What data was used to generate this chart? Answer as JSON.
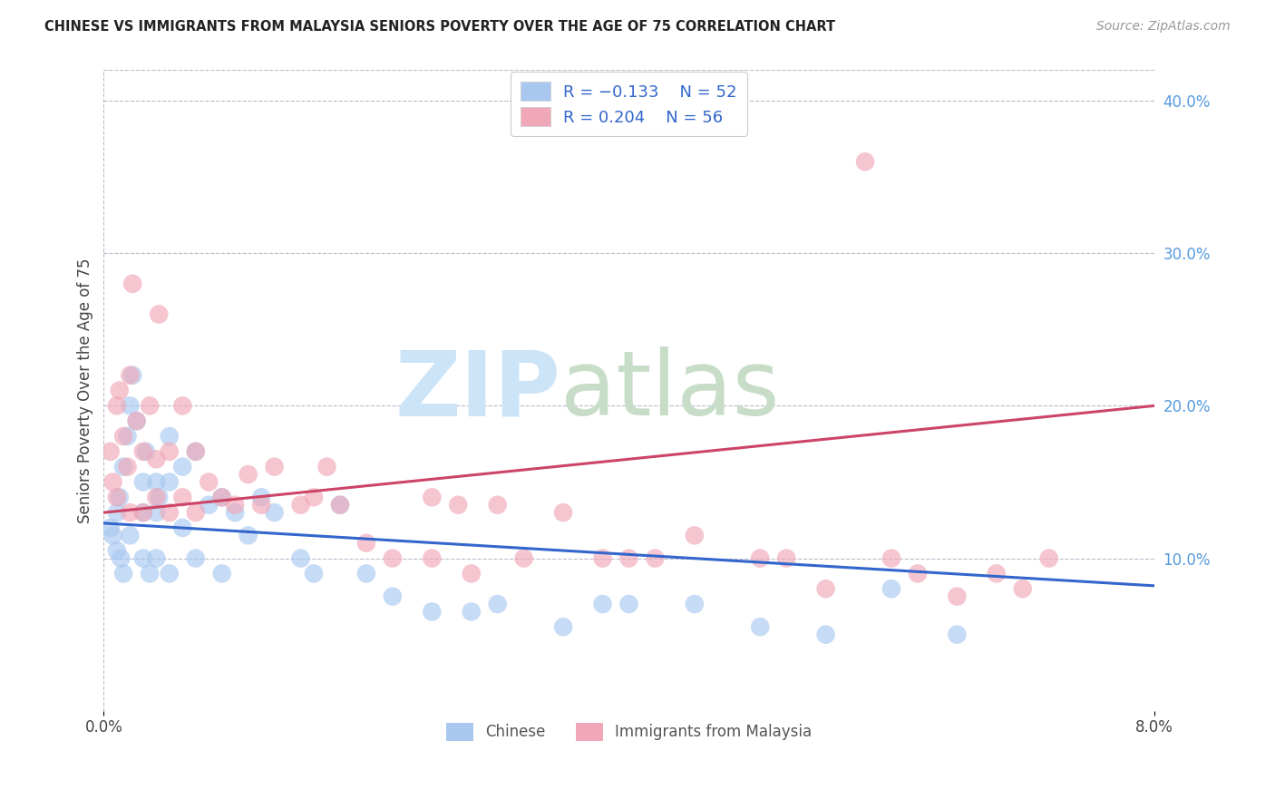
{
  "title": "CHINESE VS IMMIGRANTS FROM MALAYSIA SENIORS POVERTY OVER THE AGE OF 75 CORRELATION CHART",
  "source": "Source: ZipAtlas.com",
  "ylabel": "Seniors Poverty Over the Age of 75",
  "xlim": [
    0.0,
    0.08
  ],
  "ylim": [
    0.0,
    0.42
  ],
  "yticks_right": [
    0.1,
    0.2,
    0.3,
    0.4
  ],
  "ytick_right_labels": [
    "10.0%",
    "20.0%",
    "30.0%",
    "40.0%"
  ],
  "chinese_R": -0.133,
  "chinese_N": 52,
  "malaysia_R": 0.204,
  "malaysia_N": 56,
  "chinese_color": "#a8c8f0",
  "malaysia_color": "#f0a8b8",
  "chinese_line_color": "#3366cc",
  "malaysia_line_color": "#cc4466",
  "legend_R_color": "#3366cc",
  "chinese_line_y0": 0.123,
  "chinese_line_y1": 0.082,
  "malaysia_line_y0": 0.13,
  "malaysia_line_y1": 0.2,
  "chinese_x": [
    0.0005,
    0.0007,
    0.001,
    0.001,
    0.0012,
    0.0013,
    0.0015,
    0.0015,
    0.0018,
    0.002,
    0.002,
    0.0022,
    0.0025,
    0.003,
    0.003,
    0.003,
    0.0032,
    0.0035,
    0.004,
    0.004,
    0.004,
    0.0042,
    0.005,
    0.005,
    0.005,
    0.006,
    0.006,
    0.007,
    0.007,
    0.008,
    0.009,
    0.009,
    0.01,
    0.011,
    0.012,
    0.013,
    0.015,
    0.016,
    0.018,
    0.02,
    0.022,
    0.025,
    0.028,
    0.03,
    0.035,
    0.038,
    0.04,
    0.045,
    0.05,
    0.055,
    0.06,
    0.065
  ],
  "chinese_y": [
    0.12,
    0.115,
    0.13,
    0.105,
    0.14,
    0.1,
    0.16,
    0.09,
    0.18,
    0.2,
    0.115,
    0.22,
    0.19,
    0.15,
    0.13,
    0.1,
    0.17,
    0.09,
    0.15,
    0.13,
    0.1,
    0.14,
    0.18,
    0.15,
    0.09,
    0.16,
    0.12,
    0.17,
    0.1,
    0.135,
    0.14,
    0.09,
    0.13,
    0.115,
    0.14,
    0.13,
    0.1,
    0.09,
    0.135,
    0.09,
    0.075,
    0.065,
    0.065,
    0.07,
    0.055,
    0.07,
    0.07,
    0.07,
    0.055,
    0.05,
    0.08,
    0.05
  ],
  "malaysia_x": [
    0.0005,
    0.0007,
    0.001,
    0.001,
    0.0012,
    0.0015,
    0.0018,
    0.002,
    0.002,
    0.0022,
    0.0025,
    0.003,
    0.003,
    0.0035,
    0.004,
    0.004,
    0.0042,
    0.005,
    0.005,
    0.006,
    0.006,
    0.007,
    0.007,
    0.008,
    0.009,
    0.01,
    0.011,
    0.012,
    0.013,
    0.015,
    0.016,
    0.017,
    0.018,
    0.02,
    0.022,
    0.025,
    0.025,
    0.027,
    0.028,
    0.03,
    0.032,
    0.035,
    0.038,
    0.04,
    0.042,
    0.045,
    0.05,
    0.052,
    0.055,
    0.058,
    0.06,
    0.062,
    0.065,
    0.068,
    0.07,
    0.072
  ],
  "malaysia_y": [
    0.17,
    0.15,
    0.2,
    0.14,
    0.21,
    0.18,
    0.16,
    0.22,
    0.13,
    0.28,
    0.19,
    0.17,
    0.13,
    0.2,
    0.165,
    0.14,
    0.26,
    0.17,
    0.13,
    0.2,
    0.14,
    0.17,
    0.13,
    0.15,
    0.14,
    0.135,
    0.155,
    0.135,
    0.16,
    0.135,
    0.14,
    0.16,
    0.135,
    0.11,
    0.1,
    0.14,
    0.1,
    0.135,
    0.09,
    0.135,
    0.1,
    0.13,
    0.1,
    0.1,
    0.1,
    0.115,
    0.1,
    0.1,
    0.08,
    0.36,
    0.1,
    0.09,
    0.075,
    0.09,
    0.08,
    0.1
  ]
}
